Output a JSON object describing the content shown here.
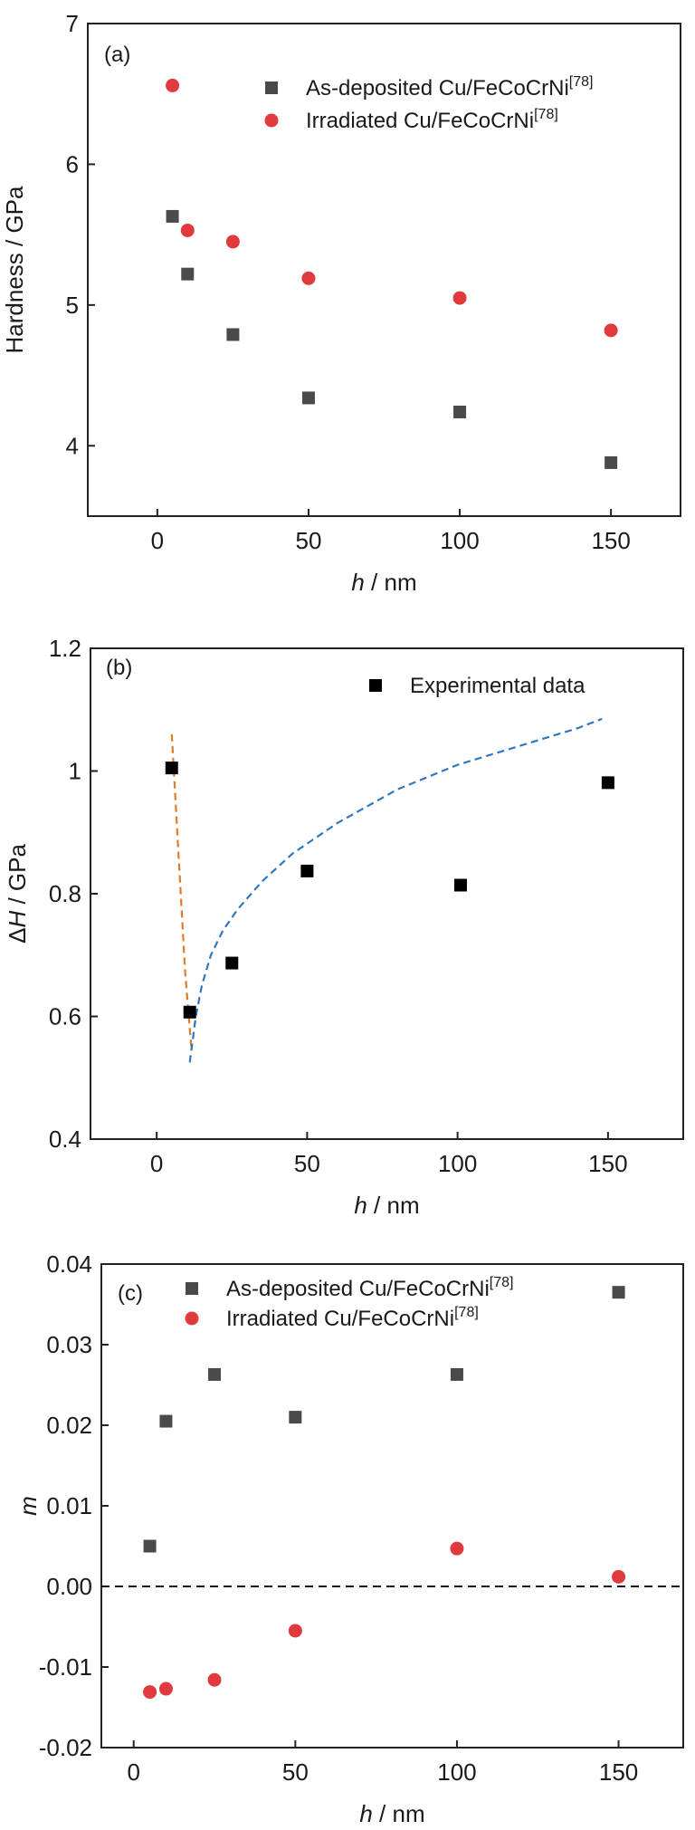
{
  "chart_data": [
    {
      "type": "scatter",
      "panel_label": "(a)",
      "xlabel_italic": "h",
      "xlabel_unit": " / nm",
      "ylabel": "Hardness / GPa",
      "xlim": [
        -23,
        173
      ],
      "ylim": [
        3.5,
        7.0
      ],
      "xticks": [
        0,
        50,
        100,
        150
      ],
      "yticks": [
        4,
        5,
        6,
        7
      ],
      "legend_position": "top-right",
      "series": [
        {
          "name_base": "As-deposited Cu/FeCoCrNi",
          "name_sup": "[78]",
          "marker": "square",
          "color": "#4a4a4a",
          "x": [
            5,
            10,
            25,
            50,
            100,
            150
          ],
          "y": [
            5.63,
            5.22,
            4.79,
            4.34,
            4.24,
            3.88
          ]
        },
        {
          "name_base": "Irradiated Cu/FeCoCrNi",
          "name_sup": "[78]",
          "marker": "circle",
          "color": "#e0393e",
          "x": [
            5,
            10,
            25,
            50,
            100,
            150
          ],
          "y": [
            6.56,
            5.53,
            5.45,
            5.19,
            5.05,
            4.82
          ]
        }
      ]
    },
    {
      "type": "scatter",
      "panel_label": "(b)",
      "xlabel_italic": "h",
      "xlabel_unit": " / nm",
      "ylabel_prefix": "Δ",
      "ylabel_italic": "H",
      "ylabel_unit": " / GPa",
      "xlim": [
        -22,
        175
      ],
      "ylim": [
        0.4,
        1.2
      ],
      "xticks": [
        0,
        50,
        100,
        150
      ],
      "yticks": [
        0.4,
        0.6,
        0.8,
        1.0,
        1.2
      ],
      "legend_position": "top-right",
      "series": [
        {
          "name": "Experimental data",
          "marker": "square",
          "color": "#000000",
          "x": [
            5,
            11,
            25,
            50,
            101,
            150
          ],
          "y": [
            1.005,
            0.607,
            0.687,
            0.837,
            0.814,
            0.981
          ]
        }
      ],
      "curves": [
        {
          "style": "dashed",
          "color": "#e07b2a",
          "x": [
            5,
            6.5,
            8,
            9.5,
            11.5
          ],
          "y": [
            1.06,
            0.93,
            0.8,
            0.67,
            0.55
          ]
        },
        {
          "style": "dashed",
          "color": "#2f78c0",
          "x": [
            11,
            13,
            15,
            18,
            22,
            27,
            35,
            45,
            60,
            80,
            100,
            120,
            140,
            148
          ],
          "y": [
            0.525,
            0.6,
            0.65,
            0.7,
            0.74,
            0.775,
            0.82,
            0.865,
            0.915,
            0.97,
            1.01,
            1.04,
            1.07,
            1.085
          ]
        }
      ]
    },
    {
      "type": "scatter",
      "panel_label": "(c)",
      "xlabel_italic": "h",
      "xlabel_unit": " / nm",
      "ylabel_italic": "m",
      "xlim": [
        -10,
        170
      ],
      "ylim": [
        -0.02,
        0.04
      ],
      "xticks": [
        0,
        50,
        100,
        150
      ],
      "yticks": [
        -0.02,
        -0.01,
        0.0,
        0.01,
        0.02,
        0.03,
        0.04
      ],
      "ytick_labels": [
        "-0.02",
        "-0.01",
        "0.00",
        "0.01",
        "0.02",
        "0.03",
        "0.04"
      ],
      "legend_position": "top-left",
      "reference_line_y": 0.0,
      "series": [
        {
          "name_base": "As-deposited Cu/FeCoCrNi",
          "name_sup": "[78]",
          "marker": "square",
          "color": "#4a4a4a",
          "x": [
            5,
            10,
            25,
            50,
            100,
            150
          ],
          "y": [
            0.005,
            0.0205,
            0.0263,
            0.021,
            0.0263,
            0.0365
          ]
        },
        {
          "name_base": "Irradiated Cu/FeCoCrNi",
          "name_sup": "[78]",
          "marker": "circle",
          "color": "#e0393e",
          "x": [
            5,
            10,
            25,
            50,
            100,
            150
          ],
          "y": [
            -0.0131,
            -0.0127,
            -0.0116,
            -0.0055,
            0.0047,
            0.0012
          ]
        }
      ]
    }
  ]
}
